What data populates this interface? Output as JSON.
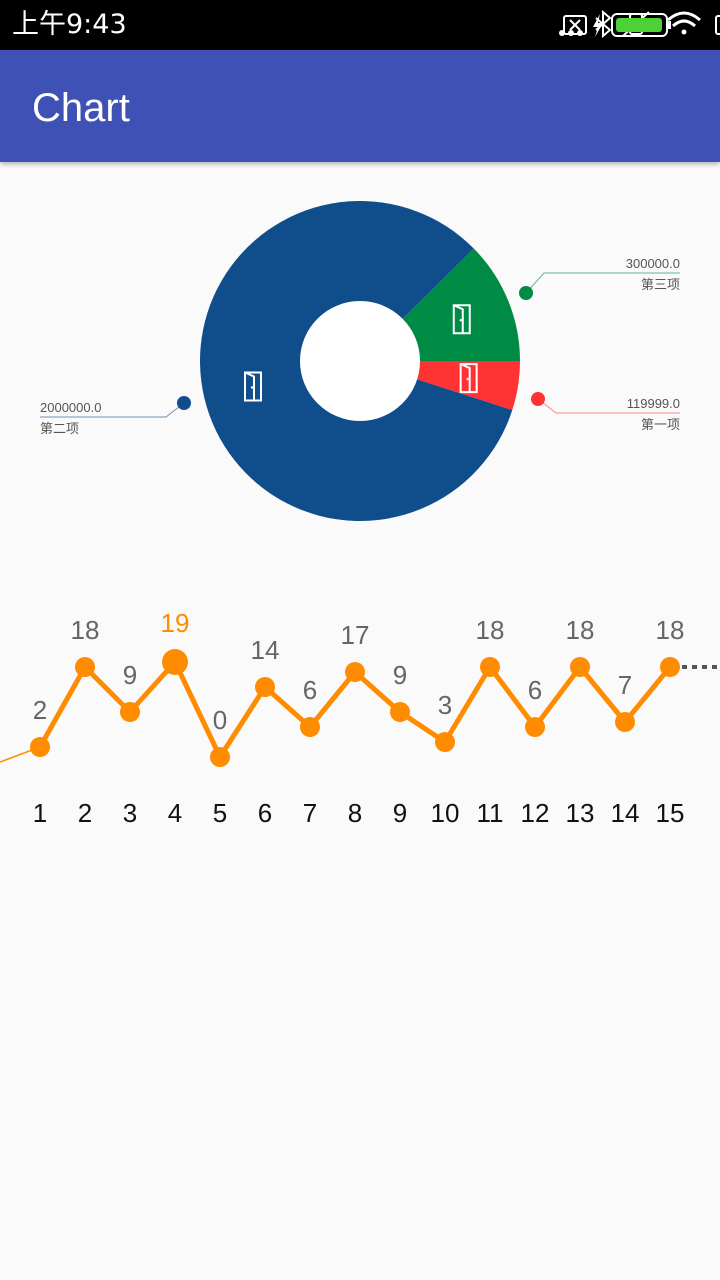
{
  "status_bar": {
    "time": "上午9:43",
    "icons": [
      "more-dots-icon",
      "bluetooth-icon",
      "vibrate-icon",
      "wifi-icon",
      "sim-x-icon",
      "charging-icon",
      "battery-icon"
    ]
  },
  "app_bar": {
    "title": "Chart",
    "color": "#3f51b5"
  },
  "chart_data": [
    {
      "type": "pie",
      "donut": true,
      "slices": [
        {
          "name": "第一项",
          "value": 119999.0,
          "label": "119999.0",
          "color": "#ff3333"
        },
        {
          "name": "第二项",
          "value": 2000000.0,
          "label": "2000000.0",
          "color": "#104e8b"
        },
        {
          "name": "第三项",
          "value": 300000.0,
          "label": "300000.0",
          "color": "#008b45"
        }
      ]
    },
    {
      "type": "line",
      "x": [
        "1",
        "2",
        "3",
        "4",
        "5",
        "6",
        "7",
        "8",
        "9",
        "10",
        "11",
        "12",
        "13",
        "14",
        "15"
      ],
      "values": [
        2,
        18,
        9,
        19,
        0,
        14,
        6,
        17,
        9,
        3,
        18,
        6,
        18,
        7,
        18
      ],
      "highlight_index": 3,
      "line_color": "#ff8c00",
      "highlight_color": "#ff8c00"
    }
  ]
}
